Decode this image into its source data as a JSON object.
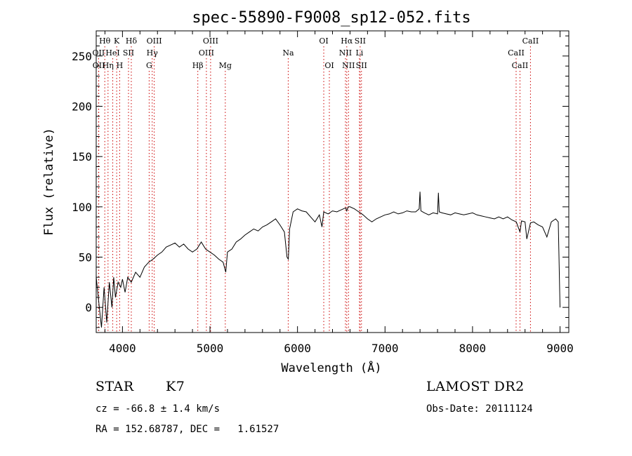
{
  "chart_data": {
    "type": "line",
    "title": "spec-55890-F9008_sp12-052.fits",
    "xlabel": "Wavelength (Å)",
    "ylabel": "Flux (relative)",
    "xlim": [
      3700,
      9100
    ],
    "ylim": [
      -25,
      275
    ],
    "x_ticks": [
      4000,
      5000,
      6000,
      7000,
      8000,
      9000
    ],
    "y_ticks": [
      0,
      50,
      100,
      150,
      200,
      250
    ],
    "grid": false,
    "line_color": "#000000",
    "marker_color": "#cc0000",
    "series": [
      {
        "x": [
          3700,
          3730,
          3760,
          3790,
          3820,
          3850,
          3880,
          3900,
          3920,
          3950,
          3980,
          4000,
          4030,
          4060,
          4100,
          4150,
          4200,
          4250,
          4300,
          4350,
          4400,
          4450,
          4500,
          4550,
          4600,
          4650,
          4700,
          4750,
          4800,
          4850,
          4900,
          4950,
          5000,
          5050,
          5100,
          5150,
          5180,
          5200,
          5250,
          5300,
          5350,
          5400,
          5450,
          5500,
          5550,
          5600,
          5650,
          5700,
          5750,
          5800,
          5850,
          5880,
          5895,
          5910,
          5950,
          6000,
          6050,
          6100,
          6150,
          6200,
          6250,
          6280,
          6300,
          6350,
          6400,
          6450,
          6500,
          6550,
          6563,
          6580,
          6600,
          6650,
          6700,
          6750,
          6800,
          6850,
          6900,
          6950,
          7000,
          7050,
          7100,
          7150,
          7200,
          7250,
          7300,
          7350,
          7390,
          7400,
          7410,
          7450,
          7500,
          7550,
          7600,
          7610,
          7620,
          7650,
          7700,
          7750,
          7800,
          7850,
          7900,
          7950,
          8000,
          8050,
          8100,
          8150,
          8200,
          8250,
          8300,
          8350,
          8400,
          8450,
          8500,
          8542,
          8560,
          8600,
          8620,
          8662,
          8700,
          8750,
          8800,
          8850,
          8900,
          8950,
          8980,
          9000
        ],
        "y": [
          30,
          5,
          -20,
          20,
          -15,
          25,
          0,
          30,
          10,
          25,
          20,
          28,
          15,
          30,
          25,
          35,
          30,
          40,
          45,
          48,
          52,
          55,
          60,
          62,
          64,
          60,
          63,
          58,
          55,
          58,
          65,
          58,
          55,
          52,
          48,
          45,
          35,
          55,
          58,
          65,
          68,
          72,
          75,
          78,
          76,
          80,
          82,
          85,
          88,
          82,
          75,
          50,
          48,
          78,
          95,
          98,
          96,
          95,
          90,
          85,
          92,
          80,
          95,
          93,
          96,
          95,
          97,
          99,
          96,
          100,
          100,
          98,
          95,
          92,
          88,
          85,
          88,
          90,
          92,
          93,
          95,
          93,
          94,
          96,
          95,
          95,
          98,
          115,
          96,
          94,
          92,
          94,
          93,
          114,
          95,
          94,
          93,
          92,
          94,
          93,
          92,
          93,
          94,
          92,
          91,
          90,
          89,
          88,
          90,
          88,
          90,
          87,
          85,
          75,
          86,
          85,
          68,
          84,
          85,
          82,
          80,
          70,
          85,
          88,
          85,
          0
        ]
      }
    ],
    "lines": [
      {
        "name": "Hθ",
        "x": 3798,
        "row": 1
      },
      {
        "name": "OII",
        "x": 3727,
        "row": 2
      },
      {
        "name": "OII",
        "x": 3729,
        "row": 3
      },
      {
        "name": "Hη",
        "x": 3835,
        "row": 3
      },
      {
        "name": "K",
        "x": 3934,
        "row": 1
      },
      {
        "name": "HeI",
        "x": 3889,
        "row": 2
      },
      {
        "name": "H",
        "x": 3968,
        "row": 3
      },
      {
        "name": "Hδ",
        "x": 4101,
        "row": 1
      },
      {
        "name": "SII",
        "x": 4069,
        "row": 2
      },
      {
        "name": "OIII",
        "x": 4363,
        "row": 1
      },
      {
        "name": "Hγ",
        "x": 4340,
        "row": 2
      },
      {
        "name": "G",
        "x": 4305,
        "row": 3
      },
      {
        "name": "Hβ",
        "x": 4861,
        "row": 3
      },
      {
        "name": "OIII",
        "x": 5007,
        "row": 1
      },
      {
        "name": "OIII",
        "x": 4959,
        "row": 2
      },
      {
        "name": "Mg",
        "x": 5175,
        "row": 3
      },
      {
        "name": "Na",
        "x": 5894,
        "row": 2
      },
      {
        "name": "OI",
        "x": 6300,
        "row": 1
      },
      {
        "name": "OI",
        "x": 6364,
        "row": 3
      },
      {
        "name": "Hα",
        "x": 6563,
        "row": 1
      },
      {
        "name": "SII",
        "x": 6716,
        "row": 1
      },
      {
        "name": "NII",
        "x": 6548,
        "row": 2
      },
      {
        "name": "Li",
        "x": 6708,
        "row": 2
      },
      {
        "name": "NII",
        "x": 6583,
        "row": 3
      },
      {
        "name": "SII",
        "x": 6731,
        "row": 3
      },
      {
        "name": "CaII",
        "x": 8662,
        "row": 1
      },
      {
        "name": "CaII",
        "x": 8498,
        "row": 2
      },
      {
        "name": "CaII",
        "x": 8542,
        "row": 3
      }
    ]
  },
  "info": {
    "class": "STAR",
    "subclass": "K7",
    "survey": "LAMOST DR2",
    "redshift": "cz = -66.8 ± 1.4 km/s",
    "obs_date": "Obs-Date: 20111124",
    "coords": "RA = 152.68787, DEC =   1.61527"
  }
}
